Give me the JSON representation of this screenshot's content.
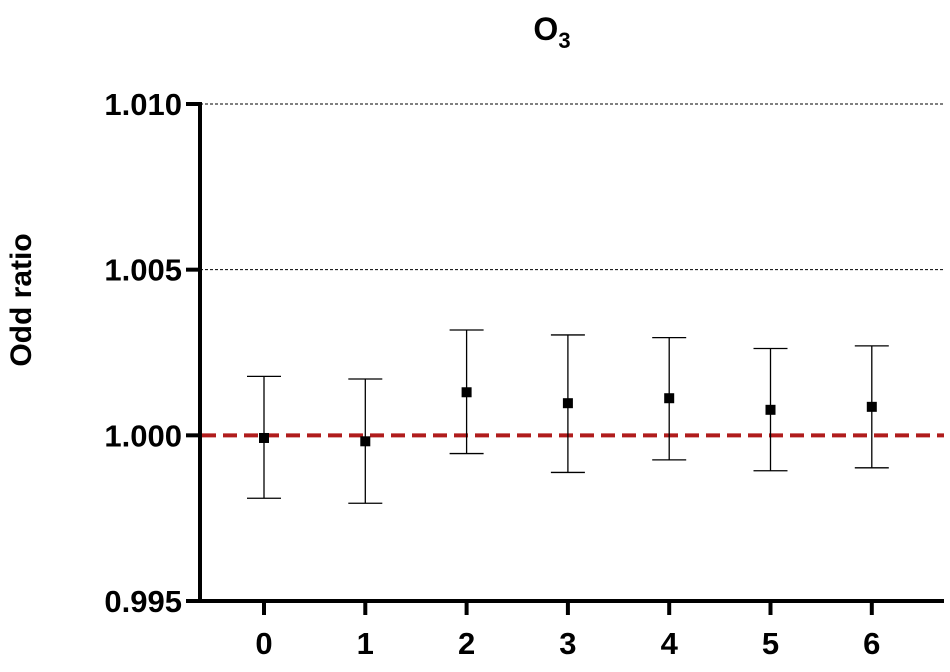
{
  "chart_data": {
    "type": "scatter",
    "title": "O",
    "title_subscript": "3",
    "xlabel": "",
    "ylabel": "Odd ratio",
    "categories": [
      "0",
      "1",
      "2",
      "3",
      "4",
      "5",
      "6"
    ],
    "ylim": [
      0.995,
      1.01
    ],
    "yticks": [
      "0.995",
      "1.000",
      "1.005",
      "1.010"
    ],
    "gridlines_at": [
      1.005,
      1.01
    ],
    "reference_line": 1.0,
    "points": [
      {
        "x": "0",
        "or": 0.99992,
        "lower": 0.9981,
        "upper": 1.00178
      },
      {
        "x": "1",
        "or": 0.99982,
        "lower": 0.99795,
        "upper": 1.0017
      },
      {
        "x": "2",
        "or": 1.0013,
        "lower": 0.99945,
        "upper": 1.00318
      },
      {
        "x": "3",
        "or": 1.00097,
        "lower": 0.99888,
        "upper": 1.00303
      },
      {
        "x": "4",
        "or": 1.00112,
        "lower": 0.99926,
        "upper": 1.00295
      },
      {
        "x": "5",
        "or": 1.00077,
        "lower": 0.99893,
        "upper": 1.00262
      },
      {
        "x": "6",
        "or": 1.00086,
        "lower": 0.99902,
        "upper": 1.0027
      }
    ],
    "colors": {
      "reference_line": "#b01c1c",
      "points": "#000000",
      "grid": "#000000"
    }
  }
}
